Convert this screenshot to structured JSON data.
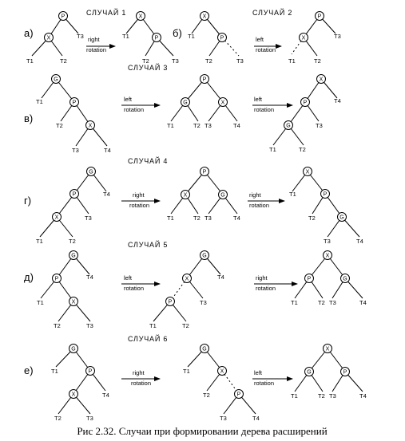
{
  "caption": "Рис 2.32. Случаи при формировании дерева расширений",
  "case_titles": {
    "c1": "СЛУЧАЙ 1",
    "c2": "СЛУЧАЙ 2",
    "c3": "СЛУЧАЙ 3",
    "c4": "СЛУЧАЙ 4",
    "c5": "СЛУЧАЙ 5",
    "c6": "СЛУЧАЙ 6"
  },
  "panel_labels": {
    "a": "а)",
    "b": "б)",
    "v": "в)",
    "g": "г)",
    "d": "д)",
    "e": "е)"
  },
  "arrows": {
    "right": {
      "line1": "right",
      "line2": "rotation"
    },
    "left": {
      "line1": "left",
      "line2": "rotation"
    }
  },
  "leaves": {
    "t1": "T1",
    "t2": "T2",
    "t3": "T3",
    "t4": "T4"
  },
  "nodes": {
    "x": "X",
    "p": "P",
    "g": "G"
  }
}
